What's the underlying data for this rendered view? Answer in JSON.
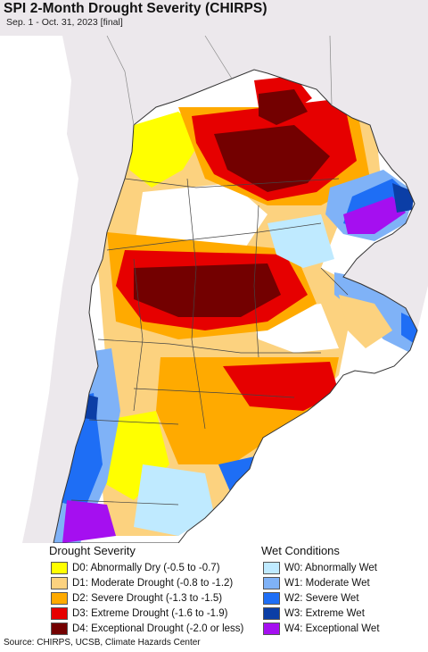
{
  "header": {
    "title": "SPI 2-Month Drought Severity (CHIRPS)",
    "subtitle": "Sep. 1 - Oct. 31, 2023 [final]"
  },
  "map": {
    "background_color": "#ece8ec",
    "ocean_color": "#ffffff"
  },
  "legend": {
    "drought": {
      "heading": "Drought Severity",
      "items": [
        {
          "label": "D0: Abnormally Dry (-0.5 to -0.7)",
          "color": "#ffff00"
        },
        {
          "label": "D1: Moderate Drought (-0.8 to -1.2)",
          "color": "#fcd27f"
        },
        {
          "label": "D2: Severe Drought (-1.3 to -1.5)",
          "color": "#ffaa00"
        },
        {
          "label": "D3: Extreme Drought (-1.6 to -1.9)",
          "color": "#e60000"
        },
        {
          "label": "D4: Exceptional Drought (-2.0 or less)",
          "color": "#730000"
        }
      ]
    },
    "wet": {
      "heading": "Wet Conditions",
      "items": [
        {
          "label": "W0: Abnormally Wet",
          "color": "#bfeaff"
        },
        {
          "label": "W1: Moderate Wet",
          "color": "#7fb2f7"
        },
        {
          "label": "W2: Severe Wet",
          "color": "#1e6ef5"
        },
        {
          "label": "W3: Extreme Wet",
          "color": "#0b3ea6"
        },
        {
          "label": "W4: Exceptional Wet",
          "color": "#a50ff0"
        }
      ]
    }
  },
  "footer": {
    "source": "Source: CHIRPS, UCSB, Climate Hazards Center"
  }
}
